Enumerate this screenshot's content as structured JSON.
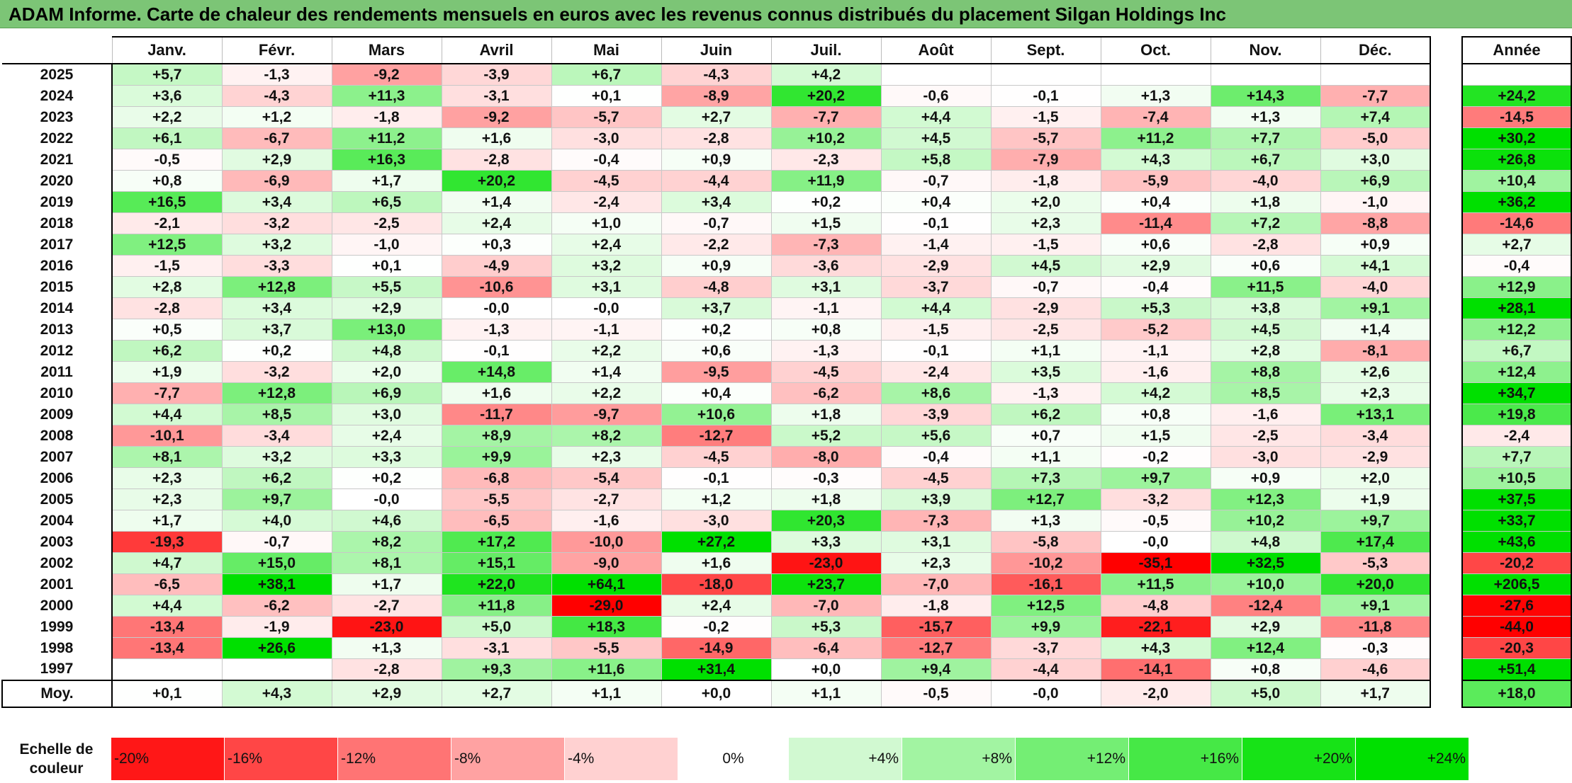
{
  "title": "ADAM Informe. Carte de chaleur des rendements mensuels en euros avec les revenus connus distribués du placement Silgan Holdings Inc",
  "chart_data": {
    "type": "heatmap",
    "title": "ADAM Informe. Carte de chaleur des rendements mensuels en euros avec les revenus connus distribués du placement Silgan Holdings Inc",
    "months": [
      "Janv.",
      "Févr.",
      "Mars",
      "Avril",
      "Mai",
      "Juin",
      "Juil.",
      "Août",
      "Sept.",
      "Oct.",
      "Nov.",
      "Déc."
    ],
    "annual_header": "Année",
    "rows": [
      {
        "year": "2025",
        "values": [
          "+5,7",
          "-1,3",
          "-9,2",
          "-3,9",
          "+6,7",
          "-4,3",
          "+4,2",
          "",
          "",
          "",
          "",
          ""
        ],
        "annual": ""
      },
      {
        "year": "2024",
        "values": [
          "+3,6",
          "-4,3",
          "+11,3",
          "-3,1",
          "+0,1",
          "-8,9",
          "+20,2",
          "-0,6",
          "-0,1",
          "+1,3",
          "+14,3",
          "-7,7"
        ],
        "annual": "+24,2"
      },
      {
        "year": "2023",
        "values": [
          "+2,2",
          "+1,2",
          "-1,8",
          "-9,2",
          "-5,7",
          "+2,7",
          "-7,7",
          "+4,4",
          "-1,5",
          "-7,4",
          "+1,3",
          "+7,4"
        ],
        "annual": "-14,5"
      },
      {
        "year": "2022",
        "values": [
          "+6,1",
          "-6,7",
          "+11,2",
          "+1,6",
          "-3,0",
          "-2,8",
          "+10,2",
          "+4,5",
          "-5,7",
          "+11,2",
          "+7,7",
          "-5,0"
        ],
        "annual": "+30,2"
      },
      {
        "year": "2021",
        "values": [
          "-0,5",
          "+2,9",
          "+16,3",
          "-2,8",
          "-0,4",
          "+0,9",
          "-2,3",
          "+5,8",
          "-7,9",
          "+4,3",
          "+6,7",
          "+3,0"
        ],
        "annual": "+26,8"
      },
      {
        "year": "2020",
        "values": [
          "+0,8",
          "-6,9",
          "+1,7",
          "+20,2",
          "-4,5",
          "-4,4",
          "+11,9",
          "-0,7",
          "-1,8",
          "-5,9",
          "-4,0",
          "+6,9"
        ],
        "annual": "+10,4"
      },
      {
        "year": "2019",
        "values": [
          "+16,5",
          "+3,4",
          "+6,5",
          "+1,4",
          "-2,4",
          "+3,4",
          "+0,2",
          "+0,4",
          "+2,0",
          "+0,4",
          "+1,8",
          "-1,0"
        ],
        "annual": "+36,2"
      },
      {
        "year": "2018",
        "values": [
          "-2,1",
          "-3,2",
          "-2,5",
          "+2,4",
          "+1,0",
          "-0,7",
          "+1,5",
          "-0,1",
          "+2,3",
          "-11,4",
          "+7,2",
          "-8,8"
        ],
        "annual": "-14,6"
      },
      {
        "year": "2017",
        "values": [
          "+12,5",
          "+3,2",
          "-1,0",
          "+0,3",
          "+2,4",
          "-2,2",
          "-7,3",
          "-1,4",
          "-1,5",
          "+0,6",
          "-2,8",
          "+0,9"
        ],
        "annual": "+2,7"
      },
      {
        "year": "2016",
        "values": [
          "-1,5",
          "-3,3",
          "+0,1",
          "-4,9",
          "+3,2",
          "+0,9",
          "-3,6",
          "-2,9",
          "+4,5",
          "+2,9",
          "+0,6",
          "+4,1"
        ],
        "annual": "-0,4"
      },
      {
        "year": "2015",
        "values": [
          "+2,8",
          "+12,8",
          "+5,5",
          "-10,6",
          "+3,1",
          "-4,8",
          "+3,1",
          "-3,7",
          "-0,7",
          "-0,4",
          "+11,5",
          "-4,0"
        ],
        "annual": "+12,9"
      },
      {
        "year": "2014",
        "values": [
          "-2,8",
          "+3,4",
          "+2,9",
          "-0,0",
          "-0,0",
          "+3,7",
          "-1,1",
          "+4,4",
          "-2,9",
          "+5,3",
          "+3,8",
          "+9,1"
        ],
        "annual": "+28,1"
      },
      {
        "year": "2013",
        "values": [
          "+0,5",
          "+3,7",
          "+13,0",
          "-1,3",
          "-1,1",
          "+0,2",
          "+0,8",
          "-1,5",
          "-2,5",
          "-5,2",
          "+4,5",
          "+1,4"
        ],
        "annual": "+12,2"
      },
      {
        "year": "2012",
        "values": [
          "+6,2",
          "+0,2",
          "+4,8",
          "-0,1",
          "+2,2",
          "+0,6",
          "-1,3",
          "-0,1",
          "+1,1",
          "-1,1",
          "+2,8",
          "-8,1"
        ],
        "annual": "+6,7"
      },
      {
        "year": "2011",
        "values": [
          "+1,9",
          "-3,2",
          "+2,0",
          "+14,8",
          "+1,4",
          "-9,5",
          "-4,5",
          "-2,4",
          "+3,5",
          "-1,6",
          "+8,8",
          "+2,6"
        ],
        "annual": "+12,4"
      },
      {
        "year": "2010",
        "values": [
          "-7,7",
          "+12,8",
          "+6,9",
          "+1,6",
          "+2,2",
          "+0,4",
          "-6,2",
          "+8,6",
          "-1,3",
          "+4,2",
          "+8,5",
          "+2,3"
        ],
        "annual": "+34,7"
      },
      {
        "year": "2009",
        "values": [
          "+4,4",
          "+8,5",
          "+3,0",
          "-11,7",
          "-9,7",
          "+10,6",
          "+1,8",
          "-3,9",
          "+6,2",
          "+0,8",
          "-1,6",
          "+13,1"
        ],
        "annual": "+19,8"
      },
      {
        "year": "2008",
        "values": [
          "-10,1",
          "-3,4",
          "+2,4",
          "+8,9",
          "+8,2",
          "-12,7",
          "+5,2",
          "+5,6",
          "+0,7",
          "+1,5",
          "-2,5",
          "-3,4"
        ],
        "annual": "-2,4"
      },
      {
        "year": "2007",
        "values": [
          "+8,1",
          "+3,2",
          "+3,3",
          "+9,9",
          "+2,3",
          "-4,5",
          "-8,0",
          "-0,4",
          "+1,1",
          "-0,2",
          "-3,0",
          "-2,9"
        ],
        "annual": "+7,7"
      },
      {
        "year": "2006",
        "values": [
          "+2,3",
          "+6,2",
          "+0,2",
          "-6,8",
          "-5,4",
          "-0,1",
          "-0,3",
          "-4,5",
          "+7,3",
          "+9,7",
          "+0,9",
          "+2,0"
        ],
        "annual": "+10,5"
      },
      {
        "year": "2005",
        "values": [
          "+2,3",
          "+9,7",
          "-0,0",
          "-5,5",
          "-2,7",
          "+1,2",
          "+1,8",
          "+3,9",
          "+12,7",
          "-3,2",
          "+12,3",
          "+1,9"
        ],
        "annual": "+37,5"
      },
      {
        "year": "2004",
        "values": [
          "+1,7",
          "+4,0",
          "+4,6",
          "-6,5",
          "-1,6",
          "-3,0",
          "+20,3",
          "-7,3",
          "+1,3",
          "-0,5",
          "+10,2",
          "+9,7"
        ],
        "annual": "+33,7"
      },
      {
        "year": "2003",
        "values": [
          "-19,3",
          "-0,7",
          "+8,2",
          "+17,2",
          "-10,0",
          "+27,2",
          "+3,3",
          "+3,1",
          "-5,8",
          "-0,0",
          "+4,8",
          "+17,4"
        ],
        "annual": "+43,6"
      },
      {
        "year": "2002",
        "values": [
          "+4,7",
          "+15,0",
          "+8,1",
          "+15,1",
          "-9,0",
          "+1,6",
          "-23,0",
          "+2,3",
          "-10,2",
          "-35,1",
          "+32,5",
          "-5,3"
        ],
        "annual": "-20,2"
      },
      {
        "year": "2001",
        "values": [
          "-6,5",
          "+38,1",
          "+1,7",
          "+22,0",
          "+64,1",
          "-18,0",
          "+23,7",
          "-7,0",
          "-16,1",
          "+11,5",
          "+10,0",
          "+20,0"
        ],
        "annual": "+206,5"
      },
      {
        "year": "2000",
        "values": [
          "+4,4",
          "-6,2",
          "-2,7",
          "+11,8",
          "-29,0",
          "+2,4",
          "-7,0",
          "-1,8",
          "+12,5",
          "-4,8",
          "-12,4",
          "+9,1"
        ],
        "annual": "-27,6"
      },
      {
        "year": "1999",
        "values": [
          "-13,4",
          "-1,9",
          "-23,0",
          "+5,0",
          "+18,3",
          "-0,2",
          "+5,3",
          "-15,7",
          "+9,9",
          "-22,1",
          "+2,9",
          "-11,8"
        ],
        "annual": "-44,0"
      },
      {
        "year": "1998",
        "values": [
          "-13,4",
          "+26,6",
          "+1,3",
          "-3,1",
          "-5,5",
          "-14,9",
          "-6,4",
          "-12,7",
          "-3,7",
          "+4,3",
          "+12,4",
          "-0,3"
        ],
        "annual": "-20,3"
      },
      {
        "year": "1997",
        "values": [
          "",
          "",
          "-2,8",
          "+9,3",
          "+11,6",
          "+31,4",
          "+0,0",
          "+9,4",
          "-4,4",
          "-14,1",
          "+0,8",
          "-4,6"
        ],
        "annual": "+51,4"
      }
    ],
    "average": {
      "label": "Moy.",
      "values": [
        "+0,1",
        "+4,3",
        "+2,9",
        "+2,7",
        "+1,1",
        "+0,0",
        "+1,1",
        "-0,5",
        "-0,0",
        "-2,0",
        "+5,0",
        "+1,7"
      ],
      "annual": "+18,0"
    },
    "color_scale": {
      "label": "Echelle de couleur",
      "steps": [
        "-20%",
        "-16%",
        "-12%",
        "-8%",
        "-4%",
        "0%",
        "+4%",
        "+8%",
        "+12%",
        "+16%",
        "+20%",
        "+24%"
      ],
      "negative_color": "#ff0000",
      "neutral_color": "#ffffff",
      "positive_color": "#00e000"
    }
  }
}
